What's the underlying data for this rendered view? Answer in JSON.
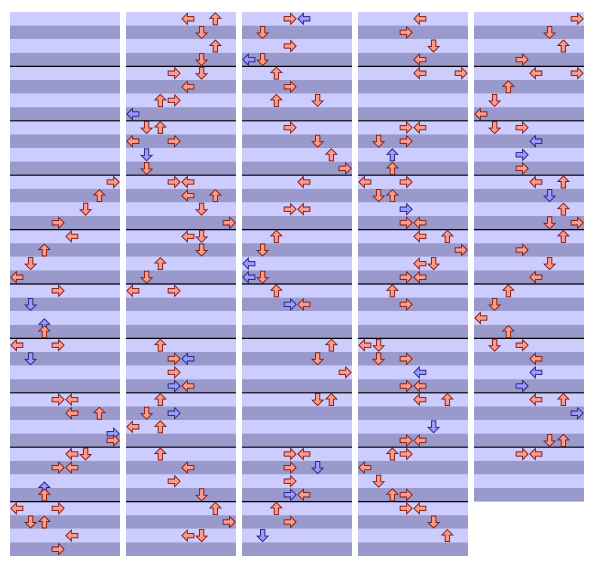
{
  "chart_type": "step-chart",
  "lanes": 8,
  "rows_per_measure": 8,
  "colors": {
    "r": "#ff9a8a",
    "b": "#9a9aff"
  },
  "columns": [
    {
      "measures": 10,
      "notes": [
        [
          24,
          7,
          "r"
        ],
        [
          26,
          6,
          "r"
        ],
        [
          28,
          5,
          "r"
        ],
        [
          30,
          3,
          "r"
        ],
        [
          32,
          4,
          "r"
        ],
        [
          34,
          2,
          "r"
        ],
        [
          36,
          1,
          "r"
        ],
        [
          38,
          0,
          "r"
        ],
        [
          40,
          3,
          "r"
        ],
        [
          42,
          1,
          "b"
        ],
        [
          45,
          2,
          "b"
        ],
        [
          46,
          2,
          "r"
        ],
        [
          48,
          0,
          "r"
        ],
        [
          48,
          3,
          "r"
        ],
        [
          50,
          1,
          "b"
        ],
        [
          56,
          3,
          "r"
        ],
        [
          56,
          4,
          "r"
        ],
        [
          58,
          4,
          "r"
        ],
        [
          58,
          6,
          "r"
        ],
        [
          61,
          7,
          "b"
        ],
        [
          62,
          7,
          "r"
        ],
        [
          64,
          4,
          "r"
        ],
        [
          64,
          5,
          "r"
        ],
        [
          66,
          3,
          "r"
        ],
        [
          66,
          4,
          "r"
        ],
        [
          69,
          2,
          "b"
        ],
        [
          70,
          2,
          "r"
        ],
        [
          72,
          0,
          "r"
        ],
        [
          72,
          3,
          "r"
        ],
        [
          74,
          1,
          "r"
        ],
        [
          74,
          2,
          "r"
        ],
        [
          76,
          4,
          "r"
        ],
        [
          78,
          3,
          "r"
        ]
      ]
    },
    {
      "measures": 10,
      "notes": [
        [
          0,
          4,
          "r"
        ],
        [
          0,
          6,
          "r"
        ],
        [
          2,
          5,
          "r"
        ],
        [
          4,
          6,
          "r"
        ],
        [
          6,
          5,
          "r"
        ],
        [
          8,
          5,
          "r"
        ],
        [
          8,
          3,
          "r"
        ],
        [
          10,
          4,
          "r"
        ],
        [
          12,
          2,
          "r"
        ],
        [
          12,
          3,
          "r"
        ],
        [
          14,
          0,
          "b"
        ],
        [
          16,
          1,
          "r"
        ],
        [
          16,
          2,
          "r"
        ],
        [
          18,
          0,
          "r"
        ],
        [
          18,
          3,
          "r"
        ],
        [
          20,
          1,
          "b"
        ],
        [
          22,
          1,
          "r"
        ],
        [
          24,
          3,
          "r"
        ],
        [
          24,
          4,
          "r"
        ],
        [
          26,
          4,
          "r"
        ],
        [
          26,
          6,
          "r"
        ],
        [
          28,
          5,
          "r"
        ],
        [
          30,
          7,
          "r"
        ],
        [
          32,
          4,
          "r"
        ],
        [
          32,
          5,
          "r"
        ],
        [
          34,
          5,
          "r"
        ],
        [
          36,
          2,
          "r"
        ],
        [
          38,
          1,
          "r"
        ],
        [
          40,
          0,
          "r"
        ],
        [
          40,
          3,
          "r"
        ],
        [
          48,
          2,
          "r"
        ],
        [
          50,
          3,
          "r"
        ],
        [
          50,
          4,
          "b"
        ],
        [
          52,
          3,
          "r"
        ],
        [
          54,
          3,
          "b"
        ],
        [
          54,
          4,
          "r"
        ],
        [
          56,
          2,
          "r"
        ],
        [
          58,
          1,
          "r"
        ],
        [
          58,
          3,
          "b"
        ],
        [
          60,
          2,
          "r"
        ],
        [
          60,
          0,
          "r"
        ],
        [
          64,
          2,
          "r"
        ],
        [
          66,
          4,
          "r"
        ],
        [
          68,
          3,
          "r"
        ],
        [
          70,
          5,
          "r"
        ],
        [
          72,
          6,
          "r"
        ],
        [
          74,
          7,
          "r"
        ],
        [
          76,
          4,
          "r"
        ],
        [
          76,
          5,
          "r"
        ]
      ]
    },
    {
      "measures": 10,
      "notes": [
        [
          0,
          3,
          "r"
        ],
        [
          0,
          4,
          "b"
        ],
        [
          2,
          1,
          "r"
        ],
        [
          4,
          3,
          "r"
        ],
        [
          6,
          0,
          "b"
        ],
        [
          6,
          1,
          "r"
        ],
        [
          8,
          2,
          "r"
        ],
        [
          10,
          3,
          "r"
        ],
        [
          12,
          2,
          "r"
        ],
        [
          12,
          5,
          "r"
        ],
        [
          16,
          3,
          "r"
        ],
        [
          18,
          5,
          "r"
        ],
        [
          20,
          6,
          "r"
        ],
        [
          22,
          7,
          "r"
        ],
        [
          24,
          4,
          "r"
        ],
        [
          28,
          4,
          "r"
        ],
        [
          28,
          3,
          "r"
        ],
        [
          32,
          2,
          "r"
        ],
        [
          34,
          1,
          "r"
        ],
        [
          36,
          0,
          "b"
        ],
        [
          38,
          0,
          "b"
        ],
        [
          38,
          1,
          "r"
        ],
        [
          40,
          2,
          "r"
        ],
        [
          42,
          3,
          "b"
        ],
        [
          42,
          4,
          "r"
        ],
        [
          48,
          6,
          "r"
        ],
        [
          50,
          5,
          "r"
        ],
        [
          52,
          7,
          "r"
        ],
        [
          56,
          5,
          "r"
        ],
        [
          56,
          6,
          "r"
        ],
        [
          64,
          3,
          "r"
        ],
        [
          64,
          4,
          "r"
        ],
        [
          66,
          3,
          "r"
        ],
        [
          66,
          5,
          "b"
        ],
        [
          68,
          3,
          "r"
        ],
        [
          70,
          3,
          "b"
        ],
        [
          70,
          4,
          "r"
        ],
        [
          72,
          2,
          "r"
        ],
        [
          74,
          3,
          "r"
        ],
        [
          76,
          1,
          "b"
        ]
      ]
    },
    {
      "measures": 10,
      "notes": [
        [
          0,
          4,
          "r"
        ],
        [
          2,
          3,
          "r"
        ],
        [
          4,
          5,
          "r"
        ],
        [
          6,
          4,
          "r"
        ],
        [
          8,
          4,
          "r"
        ],
        [
          8,
          7,
          "r"
        ],
        [
          16,
          3,
          "r"
        ],
        [
          16,
          4,
          "r"
        ],
        [
          18,
          1,
          "r"
        ],
        [
          18,
          3,
          "r"
        ],
        [
          20,
          2,
          "b"
        ],
        [
          22,
          2,
          "r"
        ],
        [
          24,
          0,
          "r"
        ],
        [
          24,
          3,
          "r"
        ],
        [
          26,
          1,
          "r"
        ],
        [
          26,
          2,
          "r"
        ],
        [
          28,
          3,
          "b"
        ],
        [
          30,
          3,
          "r"
        ],
        [
          30,
          4,
          "r"
        ],
        [
          32,
          4,
          "r"
        ],
        [
          32,
          6,
          "r"
        ],
        [
          34,
          7,
          "r"
        ],
        [
          36,
          5,
          "r"
        ],
        [
          36,
          4,
          "r"
        ],
        [
          38,
          3,
          "r"
        ],
        [
          38,
          4,
          "r"
        ],
        [
          40,
          2,
          "r"
        ],
        [
          42,
          3,
          "r"
        ],
        [
          48,
          0,
          "r"
        ],
        [
          48,
          1,
          "r"
        ],
        [
          50,
          1,
          "r"
        ],
        [
          50,
          3,
          "r"
        ],
        [
          52,
          4,
          "b"
        ],
        [
          54,
          3,
          "r"
        ],
        [
          54,
          4,
          "r"
        ],
        [
          56,
          4,
          "r"
        ],
        [
          56,
          6,
          "r"
        ],
        [
          60,
          5,
          "b"
        ],
        [
          62,
          4,
          "r"
        ],
        [
          62,
          3,
          "r"
        ],
        [
          64,
          2,
          "r"
        ],
        [
          64,
          3,
          "r"
        ],
        [
          66,
          0,
          "r"
        ],
        [
          68,
          1,
          "r"
        ],
        [
          70,
          2,
          "r"
        ],
        [
          70,
          3,
          "r"
        ],
        [
          72,
          3,
          "r"
        ],
        [
          72,
          4,
          "r"
        ],
        [
          74,
          5,
          "r"
        ],
        [
          76,
          6,
          "r"
        ]
      ]
    },
    {
      "measures": 9,
      "notes": [
        [
          0,
          7,
          "r"
        ],
        [
          2,
          5,
          "r"
        ],
        [
          4,
          6,
          "r"
        ],
        [
          6,
          3,
          "r"
        ],
        [
          8,
          4,
          "r"
        ],
        [
          8,
          7,
          "r"
        ],
        [
          10,
          2,
          "r"
        ],
        [
          12,
          1,
          "r"
        ],
        [
          14,
          0,
          "r"
        ],
        [
          16,
          1,
          "r"
        ],
        [
          16,
          3,
          "r"
        ],
        [
          18,
          4,
          "b"
        ],
        [
          20,
          3,
          "b"
        ],
        [
          22,
          3,
          "r"
        ],
        [
          24,
          4,
          "r"
        ],
        [
          24,
          6,
          "r"
        ],
        [
          26,
          5,
          "b"
        ],
        [
          28,
          6,
          "r"
        ],
        [
          30,
          5,
          "r"
        ],
        [
          30,
          7,
          "r"
        ],
        [
          32,
          6,
          "r"
        ],
        [
          34,
          3,
          "r"
        ],
        [
          36,
          5,
          "r"
        ],
        [
          38,
          4,
          "r"
        ],
        [
          40,
          2,
          "r"
        ],
        [
          42,
          1,
          "r"
        ],
        [
          44,
          0,
          "r"
        ],
        [
          46,
          2,
          "r"
        ],
        [
          48,
          1,
          "r"
        ],
        [
          48,
          3,
          "r"
        ],
        [
          50,
          4,
          "r"
        ],
        [
          52,
          4,
          "b"
        ],
        [
          54,
          3,
          "b"
        ],
        [
          56,
          4,
          "r"
        ],
        [
          56,
          6,
          "r"
        ],
        [
          58,
          7,
          "b"
        ],
        [
          62,
          5,
          "r"
        ],
        [
          62,
          6,
          "r"
        ],
        [
          64,
          3,
          "r"
        ],
        [
          64,
          4,
          "r"
        ]
      ]
    }
  ]
}
